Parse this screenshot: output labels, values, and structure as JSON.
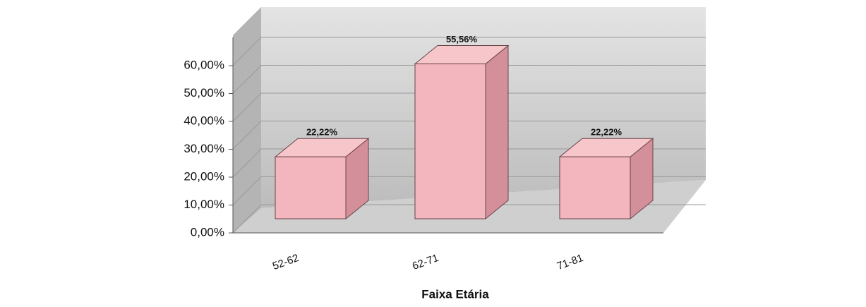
{
  "chart_data": {
    "type": "bar",
    "categories": [
      "52-62",
      "62-71",
      "71-81"
    ],
    "values": [
      22.22,
      55.56,
      22.22
    ],
    "value_labels": [
      "22,22%",
      "55,56%",
      "22,22%"
    ],
    "color": "#f4b6be",
    "ylim": [
      0,
      60
    ],
    "yticks": [
      {
        "value": 0,
        "label": "0,00%"
      },
      {
        "value": 10,
        "label": "10,00%"
      },
      {
        "value": 20,
        "label": "20,00%"
      },
      {
        "value": 30,
        "label": "30,00%"
      },
      {
        "value": 40,
        "label": "40,00%"
      },
      {
        "value": 50,
        "label": "50,00%"
      },
      {
        "value": 60,
        "label": "60,00%"
      }
    ],
    "grid": true,
    "x_label": "Faixa Etária"
  }
}
